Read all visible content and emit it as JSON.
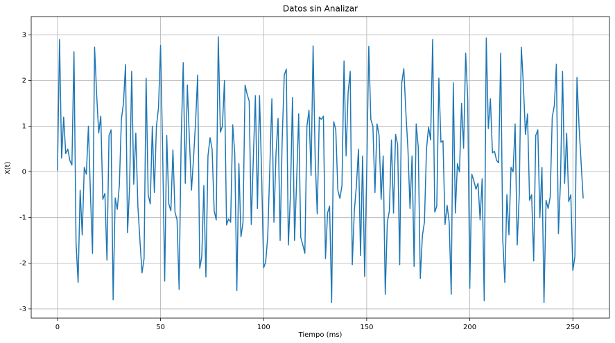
{
  "chart_data": {
    "type": "line",
    "title": "Datos sin Analizar",
    "x_label": "Tiempo (ms)",
    "y_label": "X(t)",
    "x": [
      0,
      1,
      2,
      3,
      4,
      5,
      6,
      7,
      8,
      9,
      10,
      11,
      12,
      13,
      14,
      15,
      16,
      17,
      18,
      19,
      20,
      21,
      22,
      23,
      24,
      25,
      26,
      27,
      28,
      29,
      30,
      31,
      32,
      33,
      34,
      35,
      36,
      37,
      38,
      39,
      40,
      41,
      42,
      43,
      44,
      45,
      46,
      47,
      48,
      49,
      50,
      51,
      52,
      53,
      54,
      55,
      56,
      57,
      58,
      59,
      60,
      61,
      62,
      63,
      64,
      65,
      66,
      67,
      68,
      69,
      70,
      71,
      72,
      73,
      74,
      75,
      76,
      77,
      78,
      79,
      80,
      81,
      82,
      83,
      84,
      85,
      86,
      87,
      88,
      89,
      90,
      91,
      92,
      93,
      94,
      95,
      96,
      97,
      98,
      99,
      100,
      101,
      102,
      103,
      104,
      105,
      106,
      107,
      108,
      109,
      110,
      111,
      112,
      113,
      114,
      115,
      116,
      117,
      118,
      119,
      120,
      121,
      122,
      123,
      124,
      125,
      126,
      127,
      128,
      129,
      130,
      131,
      132,
      133,
      134,
      135,
      136,
      137,
      138,
      139,
      140,
      141,
      142,
      143,
      144,
      145,
      146,
      147,
      148,
      149,
      150,
      151,
      152,
      153,
      154,
      155,
      156,
      157,
      158,
      159,
      160,
      161,
      162,
      163,
      164,
      165,
      166,
      167,
      168,
      169,
      170,
      171,
      172,
      173,
      174,
      175,
      176,
      177,
      178,
      179,
      180,
      181,
      182,
      183,
      184,
      185,
      186,
      187,
      188,
      189,
      190,
      191,
      192,
      193,
      194,
      195,
      196,
      197,
      198,
      199,
      200,
      201,
      202,
      203,
      204,
      205,
      206,
      207,
      208,
      209,
      210,
      211,
      212,
      213,
      214,
      215,
      216,
      217,
      218,
      219,
      220,
      221,
      222,
      223,
      224,
      225,
      226,
      227,
      228,
      229,
      230,
      231,
      232,
      233,
      234,
      235,
      236,
      237,
      238,
      239,
      240,
      241,
      242,
      243,
      244,
      245,
      246,
      247,
      248,
      249,
      250,
      251,
      252,
      253,
      254,
      255
    ],
    "values": [
      0.03,
      2.9,
      0.3,
      1.2,
      0.4,
      0.5,
      0.25,
      0.15,
      2.63,
      -1.55,
      -2.42,
      -0.4,
      -1.38,
      0.1,
      -0.05,
      1.0,
      -0.5,
      -1.78,
      2.73,
      1.7,
      0.85,
      1.22,
      -0.6,
      -0.47,
      -1.93,
      0.8,
      0.92,
      -2.8,
      -0.57,
      -0.82,
      -0.3,
      1.15,
      1.5,
      2.35,
      -1.33,
      -0.3,
      2.2,
      -0.27,
      0.85,
      -0.75,
      -1.5,
      -2.21,
      -1.9,
      2.05,
      -0.5,
      -0.7,
      1.0,
      -0.45,
      1.0,
      1.4,
      2.77,
      0.5,
      -2.39,
      0.8,
      -0.7,
      -0.85,
      0.48,
      -0.88,
      -1.05,
      -2.57,
      0.7,
      2.39,
      -0.25,
      1.9,
      0.7,
      -0.4,
      0.3,
      1.1,
      2.12,
      -2.11,
      -1.85,
      -0.3,
      -2.3,
      0.35,
      0.75,
      0.5,
      -0.85,
      -1.05,
      2.96,
      0.87,
      1.0,
      2.0,
      -1.16,
      -1.03,
      -1.1,
      1.03,
      0.4,
      -2.6,
      0.18,
      -1.42,
      -1.1,
      1.9,
      1.7,
      1.55,
      -1.15,
      0.3,
      1.67,
      -0.8,
      1.67,
      0.0,
      -2.1,
      -1.97,
      -1.4,
      0.1,
      1.6,
      -1.1,
      0.4,
      1.17,
      -1.5,
      0.7,
      2.12,
      2.25,
      -1.6,
      -0.5,
      1.63,
      -1.5,
      -0.2,
      1.27,
      -1.43,
      -1.6,
      -1.78,
      1.0,
      1.35,
      -0.08,
      2.76,
      0.3,
      -0.92,
      1.2,
      1.15,
      1.22,
      -1.9,
      -0.9,
      -0.75,
      -2.86,
      1.1,
      0.92,
      -0.4,
      -0.58,
      -0.3,
      2.43,
      0.35,
      1.75,
      2.2,
      -2.03,
      -0.85,
      -0.3,
      0.5,
      -1.83,
      0.35,
      -2.29,
      0.0,
      2.75,
      1.15,
      1.0,
      -0.45,
      1.05,
      0.8,
      -0.6,
      0.35,
      -2.68,
      -1.1,
      -0.85,
      0.7,
      -0.9,
      0.82,
      0.6,
      -2.03,
      1.95,
      2.26,
      1.3,
      0.5,
      -0.8,
      0.35,
      -2.07,
      1.05,
      0.55,
      -2.33,
      -1.4,
      -1.1,
      0.5,
      0.98,
      0.7,
      2.9,
      -0.88,
      -0.75,
      2.05,
      0.65,
      0.68,
      -1.15,
      -0.73,
      -1.1,
      -2.68,
      1.95,
      -0.9,
      0.18,
      0.0,
      1.5,
      0.52,
      2.6,
      1.6,
      -2.55,
      -0.05,
      -0.2,
      -0.38,
      -0.25,
      -1.05,
      -0.15,
      -2.82,
      2.93,
      0.95,
      1.6,
      0.42,
      0.45,
      0.25,
      0.2,
      2.6,
      -1.48,
      -2.42,
      -0.5,
      -1.38,
      0.1,
      0.0,
      1.05,
      -1.6,
      -0.5,
      2.73,
      1.9,
      0.82,
      1.27,
      -0.62,
      -0.5,
      -1.95,
      0.8,
      0.92,
      -1.0,
      0.1,
      -2.86,
      -0.62,
      -0.8,
      -0.55,
      1.2,
      1.45,
      2.36,
      -1.35,
      -0.2,
      2.2,
      -0.25,
      0.85,
      -0.65,
      -0.5,
      -2.16,
      -1.85,
      2.07,
      1.0,
      0.2,
      -0.58
    ],
    "color": "#1f77b4",
    "xlim": [
      -12.75,
      267.75
    ],
    "xticks": [
      0,
      50,
      100,
      150,
      200,
      250
    ],
    "ylim": [
      -3.2,
      3.4
    ],
    "yticks": [
      -3,
      -2,
      -1,
      0,
      1,
      2,
      3
    ],
    "grid": true
  }
}
